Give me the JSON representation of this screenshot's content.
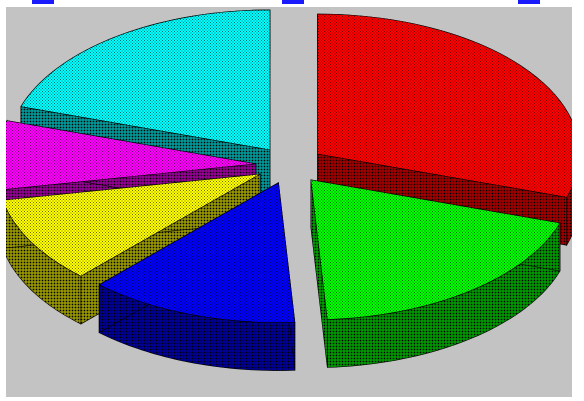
{
  "chart_data": {
    "type": "pie",
    "style": "3d-exploded-dithered",
    "title": "",
    "categories": [
      "",
      "",
      "",
      "",
      "",
      ""
    ],
    "values": [
      30,
      19,
      13,
      10,
      8,
      20
    ],
    "colors": [
      "#ff0000",
      "#00ff00",
      "#0000ff",
      "#ffff00",
      "#ff00ff",
      "#00ffff"
    ],
    "dark_colors": [
      "#7a0000",
      "#007000",
      "#00006e",
      "#6e6e00",
      "#6e006e",
      "#007070"
    ],
    "legend": "none"
  }
}
